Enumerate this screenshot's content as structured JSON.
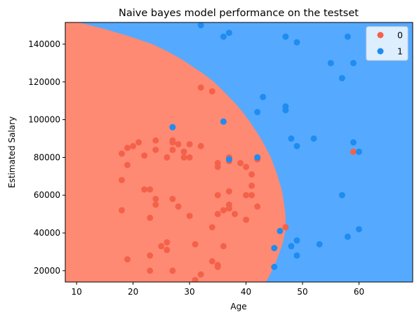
{
  "chart_data": {
    "type": "scatter",
    "title": "Naive bayes model performance on the testset",
    "xlabel": "Age",
    "ylabel": "Estimated Salary",
    "xlim": [
      8.0,
      69.5
    ],
    "ylim": [
      14000,
      151500
    ],
    "x_ticks": [
      10,
      20,
      30,
      40,
      50,
      60
    ],
    "y_ticks": [
      20000,
      40000,
      60000,
      80000,
      100000,
      120000,
      140000
    ],
    "grid": false,
    "legend_position": "top-right",
    "background_regions": {
      "colors": {
        "class0": "#ff8a73",
        "class1": "#55aaff"
      },
      "class0_boundary": {
        "salary": [
          151500,
          148000,
          144000,
          140000,
          136000,
          132000,
          128000,
          124000,
          120000,
          116000,
          112000,
          108000,
          104000,
          100000,
          96000,
          92000,
          88000,
          84000,
          80000,
          76000,
          72000,
          68000,
          64000,
          60000,
          56000,
          52000,
          48000,
          44000,
          40000,
          36000,
          32000,
          28000,
          24000,
          20000,
          16000,
          14000
        ],
        "age_max": [
          10.3,
          15.0,
          19.5,
          23.4,
          26.2,
          28.6,
          30.6,
          32.6,
          34.3,
          35.7,
          37.0,
          38.3,
          39.4,
          40.4,
          41.3,
          42.2,
          43.0,
          43.7,
          44.4,
          44.9,
          45.4,
          45.8,
          46.2,
          46.5,
          46.7,
          46.9,
          47.0,
          47.0,
          46.9,
          46.6,
          46.2,
          45.7,
          45.2,
          44.6,
          43.9,
          43.5
        ]
      }
    },
    "series": [
      {
        "name": "0",
        "color": "#f4614a",
        "points": [
          [
            18,
            82000
          ],
          [
            19,
            85000
          ],
          [
            20,
            86000
          ],
          [
            21,
            88000
          ],
          [
            19,
            76000
          ],
          [
            22,
            81000
          ],
          [
            24,
            89000
          ],
          [
            24,
            84000
          ],
          [
            26,
            80000
          ],
          [
            27,
            89000
          ],
          [
            27,
            88000
          ],
          [
            27,
            84000
          ],
          [
            28,
            87000
          ],
          [
            29,
            83000
          ],
          [
            29,
            80000
          ],
          [
            30,
            87000
          ],
          [
            30,
            80000
          ],
          [
            32,
            86000
          ],
          [
            18,
            68000
          ],
          [
            22,
            63000
          ],
          [
            23,
            63000
          ],
          [
            24,
            58000
          ],
          [
            24,
            55000
          ],
          [
            27,
            58000
          ],
          [
            28,
            54000
          ],
          [
            30,
            49000
          ],
          [
            18,
            52000
          ],
          [
            23,
            48000
          ],
          [
            25,
            33000
          ],
          [
            26,
            35000
          ],
          [
            26,
            31000
          ],
          [
            23,
            28000
          ],
          [
            19,
            26000
          ],
          [
            23,
            20000
          ],
          [
            27,
            20000
          ],
          [
            31,
            34000
          ],
          [
            31,
            15000
          ],
          [
            32,
            18000
          ],
          [
            32,
            117000
          ],
          [
            34,
            115000
          ],
          [
            35,
            77000
          ],
          [
            35,
            75000
          ],
          [
            37,
            80000
          ],
          [
            37,
            78000
          ],
          [
            39,
            77000
          ],
          [
            40,
            75000
          ],
          [
            41,
            71000
          ],
          [
            42,
            80000
          ],
          [
            42,
            79000
          ],
          [
            41,
            65000
          ],
          [
            37,
            62000
          ],
          [
            35,
            60000
          ],
          [
            36,
            52000
          ],
          [
            37,
            55000
          ],
          [
            37,
            53000
          ],
          [
            35,
            50000
          ],
          [
            38,
            50000
          ],
          [
            40,
            60000
          ],
          [
            41,
            60000
          ],
          [
            42,
            54000
          ],
          [
            40,
            47000
          ],
          [
            36,
            33000
          ],
          [
            34,
            43000
          ],
          [
            34,
            25000
          ],
          [
            35,
            23000
          ],
          [
            35,
            22000
          ],
          [
            47,
            43000
          ],
          [
            59,
            83000
          ]
        ]
      },
      {
        "name": "1",
        "color": "#1e8cf0",
        "points": [
          [
            32,
            150000
          ],
          [
            36,
            144000
          ],
          [
            37,
            146000
          ],
          [
            47,
            144000
          ],
          [
            49,
            141000
          ],
          [
            58,
            144000
          ],
          [
            55,
            130000
          ],
          [
            59,
            130000
          ],
          [
            57,
            122000
          ],
          [
            43,
            112000
          ],
          [
            42,
            104000
          ],
          [
            47,
            105000
          ],
          [
            47,
            107000
          ],
          [
            36,
            99000
          ],
          [
            27,
            96000
          ],
          [
            48,
            90000
          ],
          [
            49,
            86000
          ],
          [
            52,
            90000
          ],
          [
            59,
            88000
          ],
          [
            60,
            83000
          ],
          [
            37,
            79000
          ],
          [
            42,
            80000
          ],
          [
            57,
            60000
          ],
          [
            60,
            42000
          ],
          [
            46,
            41000
          ],
          [
            58,
            38000
          ],
          [
            45,
            32000
          ],
          [
            48,
            33000
          ],
          [
            49,
            36000
          ],
          [
            53,
            34000
          ],
          [
            49,
            28000
          ],
          [
            45,
            22000
          ]
        ]
      }
    ]
  }
}
